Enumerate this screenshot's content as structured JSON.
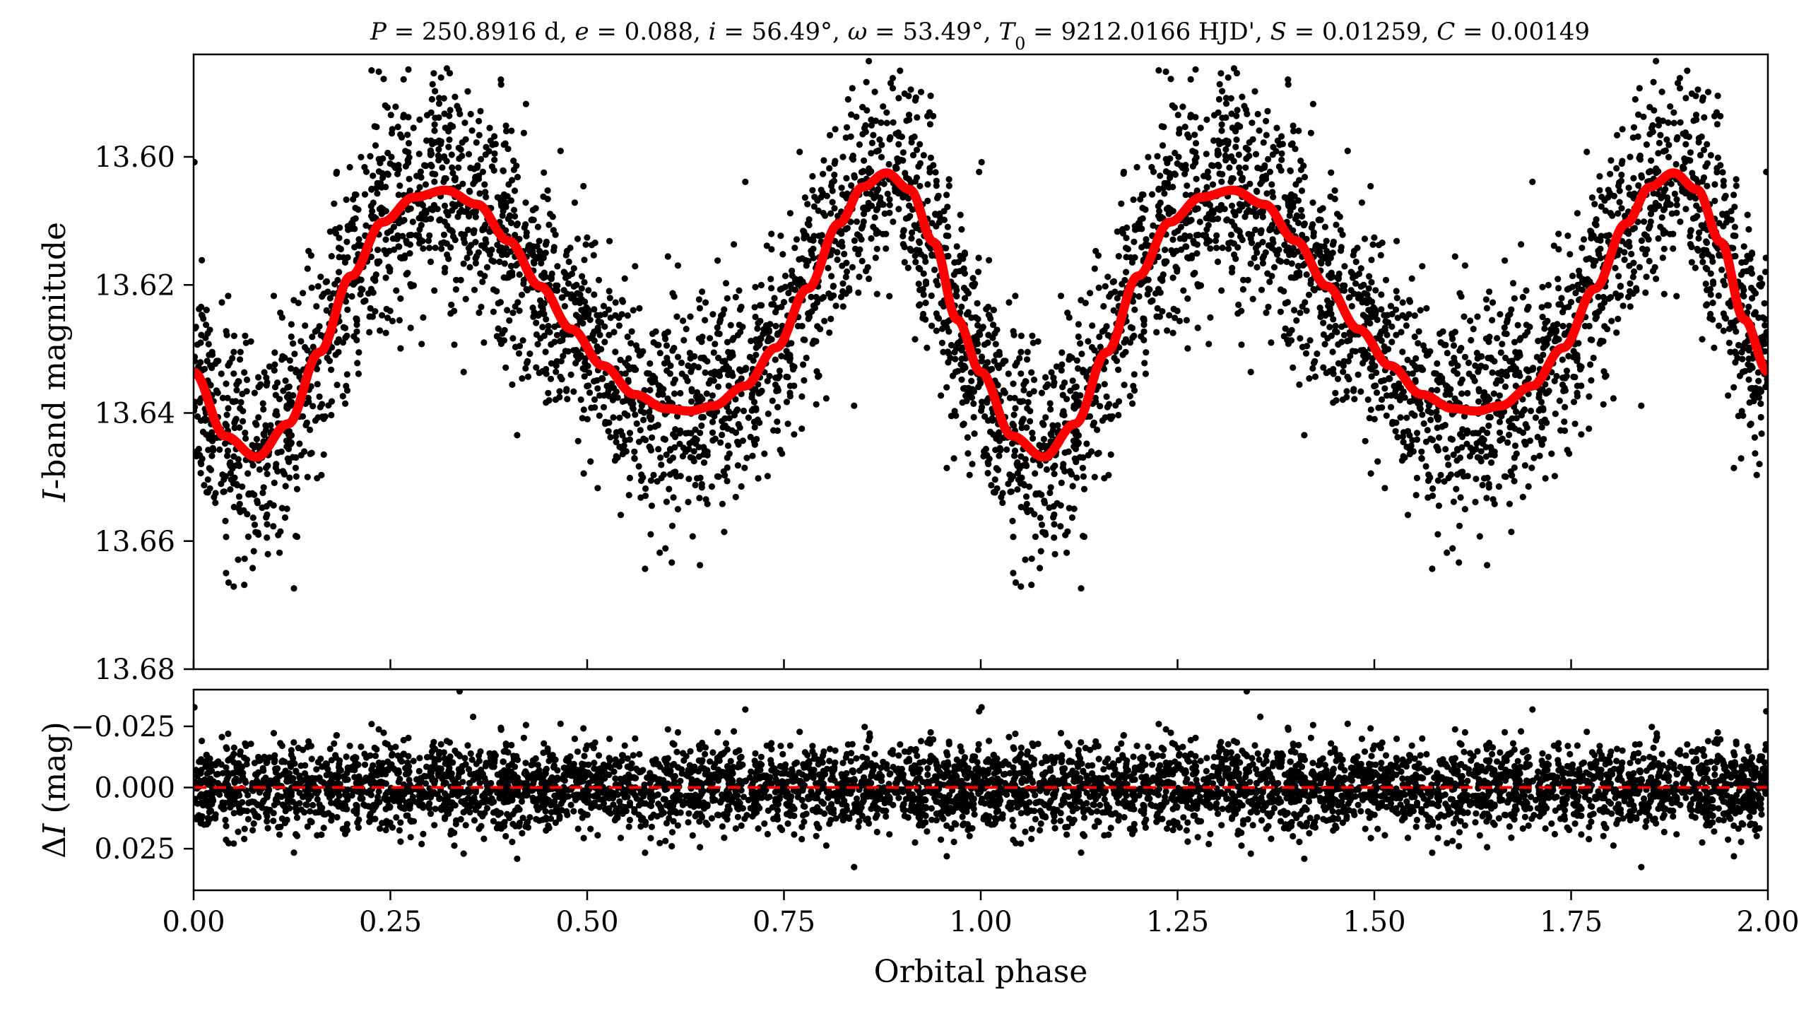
{
  "chart_data": [
    {
      "type": "scatter",
      "panel": "top",
      "title": "P = 250.8916 d, e = 0.088, i = 56.49°, ω = 53.49°, T0 = 9212.0166 HJD', S = 0.01259, C = 0.00149",
      "title_parts": [
        {
          "t": "P",
          "i": true
        },
        {
          "t": " = 250.8916 d, "
        },
        {
          "t": "e",
          "i": true
        },
        {
          "t": " = 0.088, "
        },
        {
          "t": "i",
          "i": true
        },
        {
          "t": " = 56.49°, "
        },
        {
          "t": "ω",
          "i": true
        },
        {
          "t": " = 53.49°, "
        },
        {
          "t": "T",
          "i": true
        },
        {
          "t": "0",
          "sub": true
        },
        {
          "t": " = 9212.0166 HJD', "
        },
        {
          "t": "S",
          "i": true
        },
        {
          "t": " = 0.01259, "
        },
        {
          "t": "C",
          "i": true
        },
        {
          "t": " = 0.00149"
        }
      ],
      "ylabel": "I-band magnitude",
      "ylabel_parts": [
        {
          "t": "I",
          "i": true
        },
        {
          "t": "-band magnitude"
        }
      ],
      "xlim": [
        0.0,
        2.0
      ],
      "ylim": [
        13.68,
        13.584
      ],
      "y_inverted": true,
      "yticks": [
        "13.60",
        "13.62",
        "13.64",
        "13.66",
        "13.68"
      ],
      "ytick_values": [
        13.6,
        13.62,
        13.64,
        13.66,
        13.68
      ],
      "xtick_values": [
        0.0,
        0.25,
        0.5,
        0.75,
        1.0,
        1.25,
        1.5,
        1.75,
        2.0
      ],
      "grid": false,
      "point_color": "#000000",
      "model_color": "#ff0000",
      "model_curve": {
        "x": [
          0.0,
          0.04,
          0.08,
          0.12,
          0.16,
          0.2,
          0.24,
          0.28,
          0.32,
          0.36,
          0.4,
          0.44,
          0.48,
          0.52,
          0.56,
          0.6,
          0.63,
          0.66,
          0.7,
          0.74,
          0.78,
          0.82,
          0.85,
          0.88,
          0.91,
          0.94,
          0.97,
          1.0,
          1.04,
          1.08,
          1.12,
          1.16,
          1.2,
          1.24,
          1.28,
          1.32,
          1.36,
          1.4,
          1.44,
          1.48,
          1.52,
          1.56,
          1.6,
          1.63,
          1.66,
          1.7,
          1.74,
          1.78,
          1.82,
          1.85,
          1.88,
          1.91,
          1.94,
          1.97,
          2.0
        ],
        "y": [
          13.6336,
          13.6436,
          13.6469,
          13.6417,
          13.6305,
          13.6186,
          13.6102,
          13.6063,
          13.6052,
          13.6074,
          13.6131,
          13.6202,
          13.6269,
          13.6326,
          13.6371,
          13.6393,
          13.6397,
          13.6389,
          13.6358,
          13.6298,
          13.6206,
          13.6104,
          13.6047,
          13.6025,
          13.6051,
          13.6133,
          13.6254,
          13.6336,
          13.6436,
          13.6469,
          13.6417,
          13.6305,
          13.6186,
          13.6102,
          13.6063,
          13.6052,
          13.6074,
          13.6131,
          13.6202,
          13.6269,
          13.6326,
          13.6371,
          13.6393,
          13.6397,
          13.6389,
          13.6358,
          13.6298,
          13.6206,
          13.6104,
          13.6047,
          13.6025,
          13.6051,
          13.6133,
          13.6254,
          13.6336
        ]
      },
      "scatter_sigma_mag": 0.0085
    },
    {
      "type": "scatter",
      "panel": "bottom",
      "xlabel": "Orbital phase",
      "ylabel": "ΔI (mag)",
      "ylabel_parts": [
        {
          "t": "Δ"
        },
        {
          "t": "I",
          "i": true
        },
        {
          "t": " (mag)"
        }
      ],
      "xlim": [
        0.0,
        2.0
      ],
      "ylim": [
        0.042,
        -0.04
      ],
      "y_inverted": true,
      "xticks": [
        "0.00",
        "0.25",
        "0.50",
        "0.75",
        "1.00",
        "1.25",
        "1.50",
        "1.75",
        "2.00"
      ],
      "xtick_values": [
        0.0,
        0.25,
        0.5,
        0.75,
        1.0,
        1.25,
        1.5,
        1.75,
        2.0
      ],
      "yticks": [
        "−0.025",
        "0.000",
        "0.025"
      ],
      "ytick_values": [
        -0.025,
        0.0,
        0.025
      ],
      "reference_line": {
        "y": 0.0,
        "style": "dashed",
        "color": "#ff0000"
      },
      "grid": false,
      "point_color": "#000000",
      "scatter_sigma_mag": 0.0085
    }
  ]
}
